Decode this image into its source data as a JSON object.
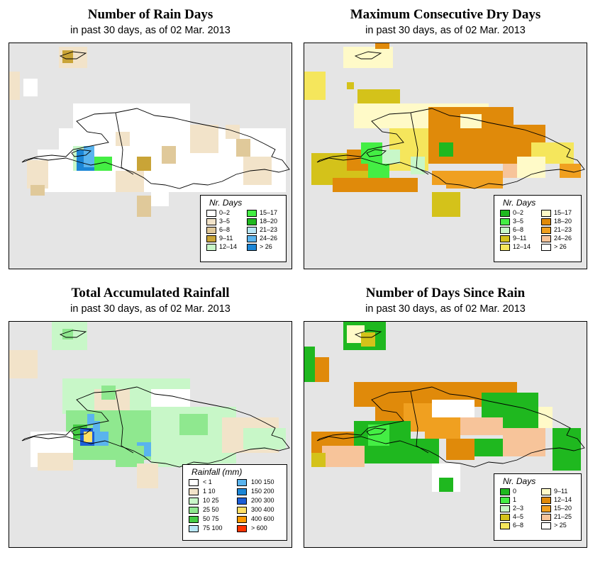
{
  "panels": [
    {
      "title": "Number of Rain Days",
      "subtitle": "in past 30 days, as of  02 Mar. 2013",
      "legend": {
        "title": "Nr. Days",
        "items": [
          {
            "label": "0–2",
            "color": "#ffffff"
          },
          {
            "label": "3–5",
            "color": "#f2e3c9"
          },
          {
            "label": "6–8",
            "color": "#e0c99a"
          },
          {
            "label": "9–11",
            "color": "#c9a437"
          },
          {
            "label": "12–14",
            "color": "#c8f7c8"
          },
          {
            "label": "15–17",
            "color": "#44ee44"
          },
          {
            "label": "18–20",
            "color": "#1fb81f"
          },
          {
            "label": "21–23",
            "color": "#b8e6f5"
          },
          {
            "label": "24–26",
            "color": "#5ab4ee"
          },
          {
            "label": "> 26",
            "color": "#1c86d6"
          }
        ]
      }
    },
    {
      "title": "Maximum Consecutive Dry Days",
      "subtitle": "in past 30 days, as of  02 Mar. 2013",
      "legend": {
        "title": "Nr. Days",
        "items": [
          {
            "label": "0–2",
            "color": "#1fb81f"
          },
          {
            "label": "3–5",
            "color": "#44ee44"
          },
          {
            "label": "6–8",
            "color": "#c8f7c8"
          },
          {
            "label": "9–11",
            "color": "#d4c21a"
          },
          {
            "label": "12–14",
            "color": "#f5e65c"
          },
          {
            "label": "15–17",
            "color": "#fffac8"
          },
          {
            "label": "18–20",
            "color": "#e08a0a"
          },
          {
            "label": "21–23",
            "color": "#f0a020"
          },
          {
            "label": "24–26",
            "color": "#f7c49a"
          },
          {
            "label": "> 26",
            "color": "#ffffff"
          }
        ]
      }
    },
    {
      "title": "Total Accumulated Rainfall",
      "subtitle": "in past 30 days, as of  02 Mar. 2013",
      "legend": {
        "title": "Rainfall (mm)",
        "items": [
          {
            "label": "< 1",
            "color": "#ffffff"
          },
          {
            "label": "1    10",
            "color": "#f2e3c9"
          },
          {
            "label": "10    25",
            "color": "#c8f7c8"
          },
          {
            "label": "25    50",
            "color": "#8fe88f"
          },
          {
            "label": "50    75",
            "color": "#44cc44"
          },
          {
            "label": "75    100",
            "color": "#b8e6f5"
          },
          {
            "label": "100   150",
            "color": "#5ab4ee"
          },
          {
            "label": "150   200",
            "color": "#1c86d6"
          },
          {
            "label": "200   300",
            "color": "#1c5ed6"
          },
          {
            "label": "300   400",
            "color": "#ffe066"
          },
          {
            "label": "400   600",
            "color": "#ff9900"
          },
          {
            "label": "> 600",
            "color": "#ff3300"
          }
        ]
      }
    },
    {
      "title": "Number of Days Since Rain",
      "subtitle": "in past 30 days, as of  02 Mar. 2013",
      "legend": {
        "title": "Nr. Days",
        "items": [
          {
            "label": "0",
            "color": "#1fb81f"
          },
          {
            "label": "1",
            "color": "#44ee44"
          },
          {
            "label": "2–3",
            "color": "#c8f7c8"
          },
          {
            "label": "4–5",
            "color": "#d4c21a"
          },
          {
            "label": "6–8",
            "color": "#f5e65c"
          },
          {
            "label": "9–11",
            "color": "#fffac8"
          },
          {
            "label": "12–14",
            "color": "#e08a0a"
          },
          {
            "label": "15–20",
            "color": "#f0a020"
          },
          {
            "label": "21–25",
            "color": "#f7c49a"
          },
          {
            "label": "> 25",
            "color": "#ffffff"
          }
        ]
      }
    }
  ]
}
